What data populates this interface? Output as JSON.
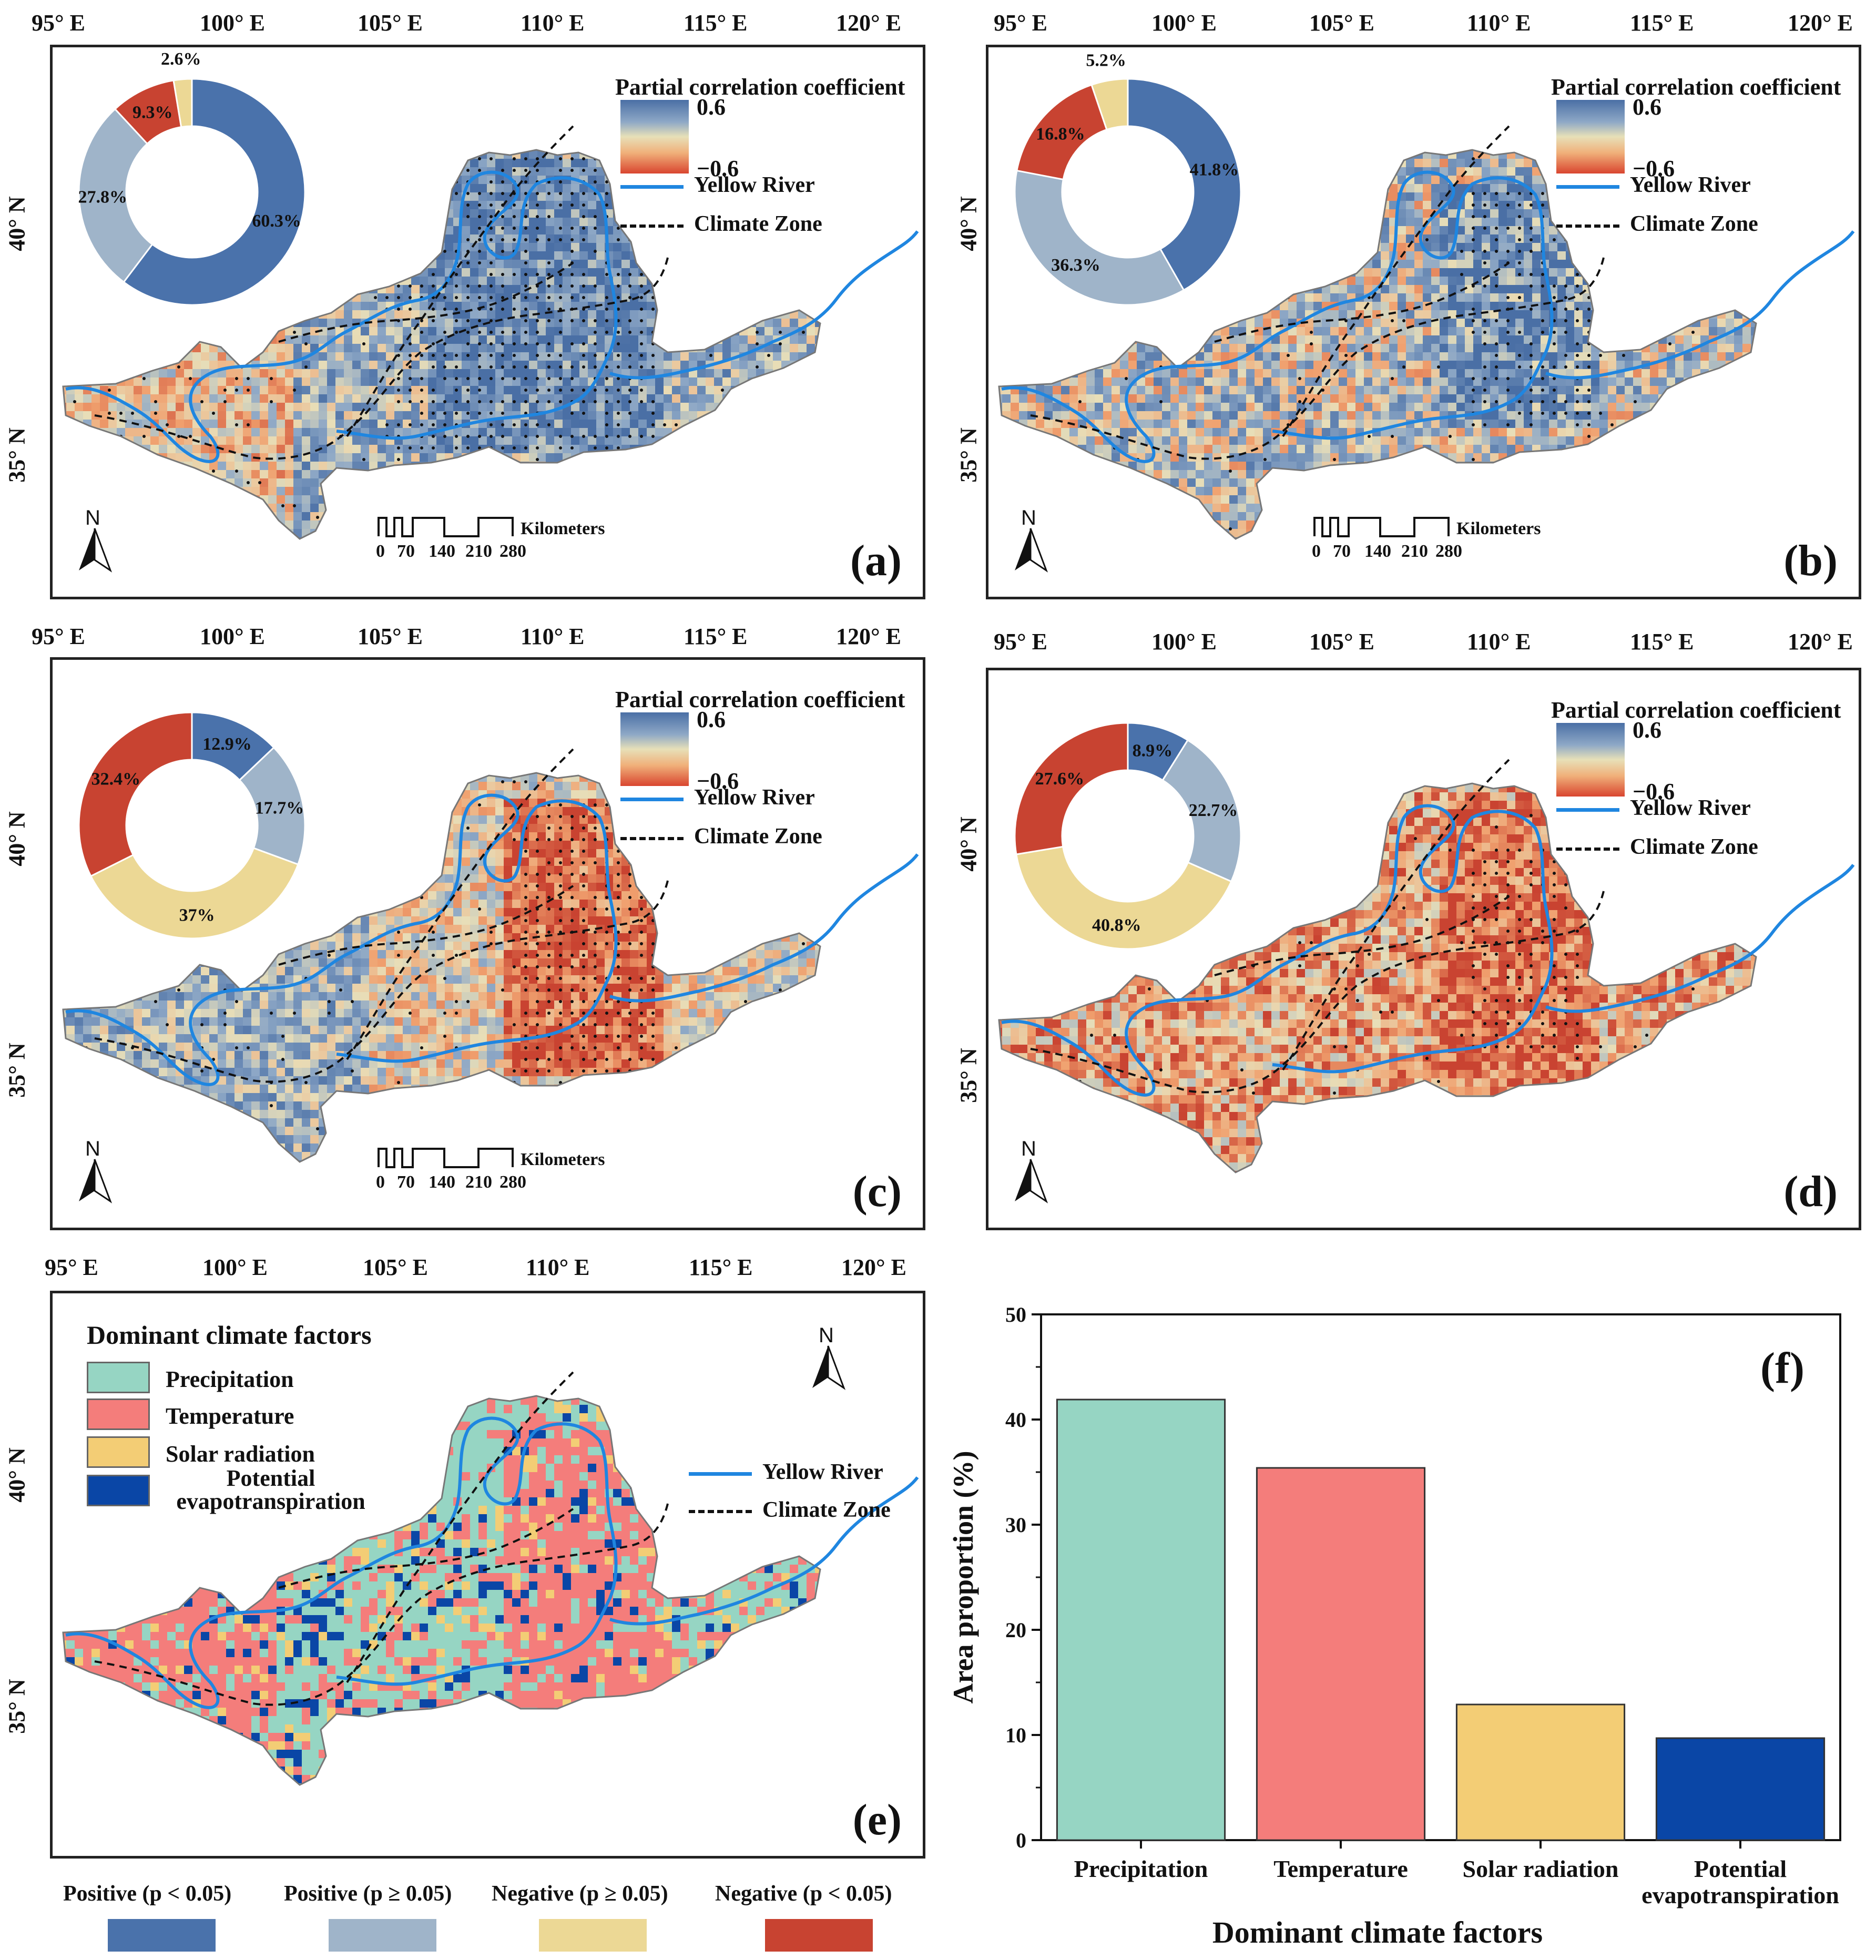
{
  "longitudes": [
    "95° E",
    "100° E",
    "105° E",
    "110° E",
    "115° E",
    "120° E"
  ],
  "latitudes": [
    "40° N",
    "35° N"
  ],
  "legend": {
    "coef_title": "Partial correlation coefficient",
    "max": "0.6",
    "min": "−0.6",
    "river": "Yellow River",
    "climate_zone": "Climate Zone",
    "north": "N",
    "scale_unit": "Kilometers",
    "scale_ticks": [
      "0",
      "70",
      "140",
      "210",
      "280"
    ]
  },
  "colors": {
    "pos_sig": "#4a72ab",
    "pos_nonsig": "#9fb4c9",
    "neg_nonsig": "#ecd895",
    "neg_sig": "#c84331",
    "river": "#1f86e0",
    "precip": "#96d5c3",
    "temp": "#f47d7b",
    "solar": "#f3cd75",
    "pet": "#0a46a6"
  },
  "panels": [
    {
      "label": "(a)",
      "donut": [
        {
          "value": 60.3,
          "text": "60.3%"
        },
        {
          "value": 27.8,
          "text": "27.8%"
        },
        {
          "value": 9.3,
          "text": "9.3%"
        },
        {
          "value": 2.6,
          "text": "2.6%"
        }
      ]
    },
    {
      "label": "(b)",
      "donut": [
        {
          "value": 41.8,
          "text": "41.8%"
        },
        {
          "value": 36.3,
          "text": "36.3%"
        },
        {
          "value": 16.8,
          "text": "16.8%"
        },
        {
          "value": 5.2,
          "text": "5.2%"
        }
      ]
    },
    {
      "label": "(c)",
      "donut": [
        {
          "value": 12.9,
          "text": "12.9%"
        },
        {
          "value": 17.7,
          "text": "17.7%"
        },
        {
          "value": 37,
          "text": "37%"
        },
        {
          "value": 32.4,
          "text": "32.4%"
        }
      ]
    },
    {
      "label": "(d)",
      "donut": [
        {
          "value": 8.9,
          "text": "8.9%"
        },
        {
          "value": 22.7,
          "text": "22.7%"
        },
        {
          "value": 40.8,
          "text": "40.8%"
        },
        {
          "value": 27.6,
          "text": "27.6%"
        }
      ]
    }
  ],
  "panel_e": {
    "label": "(e)",
    "title": "Dominant climate factors",
    "items": [
      "Precipitation",
      "Temperature",
      "Solar radiation",
      "Potential evapotranspiration"
    ]
  },
  "bottom_legend": [
    "Positive (p < 0.05)",
    "Positive (p ≥ 0.05)",
    "Negative (p ≥ 0.05)",
    "Negative (p < 0.05)"
  ],
  "chart_data": {
    "type": "bar",
    "label": "(f)",
    "categories": [
      "Precipitation",
      "Temperature",
      "Solar radiation",
      "Potential evapotranspiration"
    ],
    "values": [
      41.9,
      35.4,
      12.9,
      9.7
    ],
    "xlabel": "Dominant climate factors",
    "ylabel": "Area proportion (%)",
    "ylim": [
      0,
      50
    ],
    "yticks": [
      0,
      10,
      20,
      30,
      40,
      50
    ]
  }
}
